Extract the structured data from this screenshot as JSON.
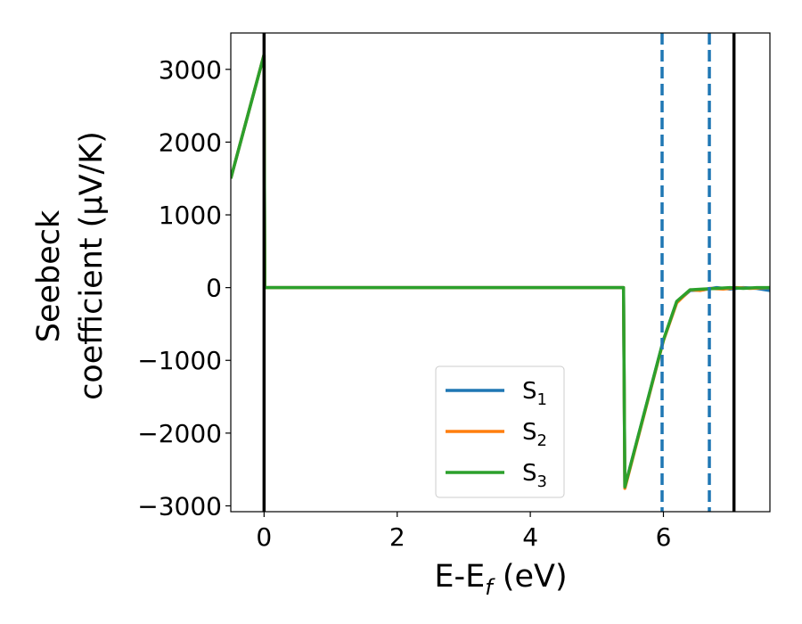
{
  "chart_data": {
    "type": "line",
    "xlabel": "E-E",
    "xlabel_sub": "f",
    "xlabel_unit": " (eV)",
    "ylabel_line1": "Seebeck",
    "ylabel_line2": "coefficient  (μV/K)",
    "xlim": [
      -0.5,
      7.6
    ],
    "ylim": [
      -3080,
      3500
    ],
    "xticks": [
      0,
      2,
      4,
      6
    ],
    "xtick_labels": [
      "0",
      "2",
      "4",
      "6"
    ],
    "yticks": [
      3000,
      2000,
      1000,
      0,
      -1000,
      -2000,
      -3000
    ],
    "ytick_labels": [
      "3000",
      "2000",
      "1000",
      "0",
      "−1000",
      "−2000",
      "−3000"
    ],
    "grid": false,
    "legend_position": "lower-center",
    "vertical_lines": [
      {
        "x": 0.0,
        "style": "solid",
        "color": "#000000"
      },
      {
        "x": 5.98,
        "style": "dashed",
        "color": "#1f77b4"
      },
      {
        "x": 6.69,
        "style": "dashed",
        "color": "#1f77b4"
      },
      {
        "x": 7.06,
        "style": "solid",
        "color": "#000000"
      }
    ],
    "series": [
      {
        "name": "S",
        "sub": "1",
        "color": "#1f77b4",
        "points": [
          [
            -0.5,
            1500
          ],
          [
            0.0,
            3200
          ],
          [
            0.01,
            0
          ],
          [
            5.4,
            0
          ],
          [
            5.42,
            -2740
          ],
          [
            6.0,
            -720
          ],
          [
            6.2,
            -200
          ],
          [
            6.4,
            -40
          ],
          [
            6.6,
            -30
          ],
          [
            6.8,
            0
          ],
          [
            7.0,
            -20
          ],
          [
            7.2,
            0
          ],
          [
            7.4,
            -10
          ],
          [
            7.6,
            -40
          ]
        ]
      },
      {
        "name": "S",
        "sub": "2",
        "color": "#ff7f0e",
        "points": [
          [
            -0.5,
            1500
          ],
          [
            0.0,
            3200
          ],
          [
            0.01,
            0
          ],
          [
            5.4,
            0
          ],
          [
            5.42,
            -2760
          ],
          [
            6.0,
            -730
          ],
          [
            6.2,
            -210
          ],
          [
            6.4,
            -30
          ],
          [
            6.55,
            -40
          ],
          [
            6.7,
            -10
          ],
          [
            6.9,
            -20
          ],
          [
            7.1,
            0
          ],
          [
            7.3,
            -10
          ],
          [
            7.6,
            0
          ]
        ]
      },
      {
        "name": "S",
        "sub": "3",
        "color": "#2ca02c",
        "points": [
          [
            -0.5,
            1500
          ],
          [
            0.0,
            3200
          ],
          [
            0.01,
            0
          ],
          [
            5.4,
            0
          ],
          [
            5.42,
            -2740
          ],
          [
            6.0,
            -720
          ],
          [
            6.2,
            -190
          ],
          [
            6.4,
            -30
          ],
          [
            6.6,
            -20
          ],
          [
            6.8,
            -10
          ],
          [
            7.0,
            0
          ],
          [
            7.2,
            -10
          ],
          [
            7.4,
            0
          ],
          [
            7.6,
            0
          ]
        ]
      }
    ]
  }
}
